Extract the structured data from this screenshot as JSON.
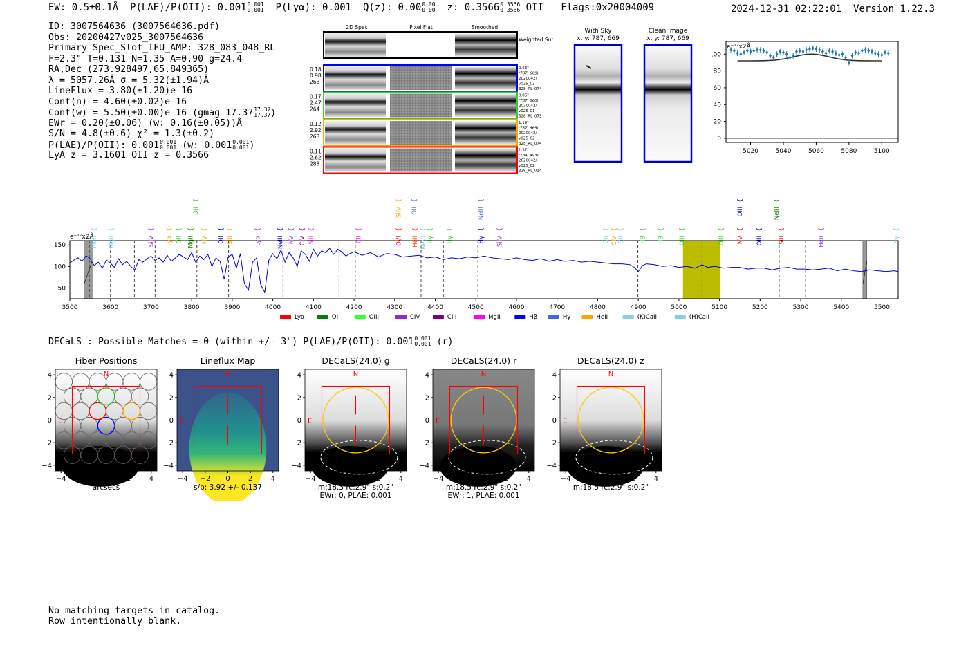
{
  "header": {
    "ew": "EW: 0.5±0.1Å",
    "plae": "P(LAE)/P(OII): 0.001",
    "plae_hi": "0.001",
    "plae_lo": "0.001",
    "plya": "P(Lyα): 0.001",
    "qz": "Q(z): 0.00",
    "qz_hi": "0.00",
    "qz_lo": "0.00",
    "z": "z: 0.3566",
    "z_hi": "0.3566",
    "z_lo": "0.3566",
    "z_line": "OII",
    "flags": "Flags:0x20004009",
    "timestamp": "2024-12-31 02:22:01",
    "version": "Version 1.22.3"
  },
  "info": {
    "id": "ID: 3007564636 (3007564636.pdf)",
    "obs": "Obs: 20200427v025_3007564636",
    "primary": "Primary Spec_Slot_IFU_AMP: 328_083_048_RL",
    "fit": "F=2.3\"  T=0.131  N=1.35  A=0.90  g=24.4",
    "radec": "RA,Dec (273.928497,65.849365)",
    "lambda": "λ = 5057.26Å   σ = 5.32(±1.94)Å",
    "lineflux": "LineFlux = 3.80(±1.20)e-16",
    "contn": "Cont(n) = 4.60(±0.02)e-16",
    "contw": "Cont(w) = 5.50(±0.00)e-16 (gmag 17.37",
    "contw_hi": "17.37",
    "contw_lo": "17.37",
    "contw_end": ")",
    "ewr": "EWr = 0.20(±0.06) (w: 0.16(±0.05))Å",
    "sn": "S/N = 4.8(±0.6)  χ² = 1.3(±0.2)",
    "plae": "P(LAE)/P(OII): 0.001",
    "plae_hi": "0.001",
    "plae_lo": "0.001",
    "plae_w": "(w: 0.001",
    "plae_w_hi": "0.001",
    "plae_w_lo": "0.001",
    "plae_end": ")",
    "lyaz": "LyA z = 3.1601  OII z = 0.3566"
  },
  "cutouts": {
    "col_titles": [
      "2D Spec",
      "Pixel Flat",
      "Smoothed"
    ],
    "weighted_label": "Weighted Sum",
    "rows": [
      {
        "color": "#0000ff",
        "left": [
          "0.18",
          "0.98",
          "263"
        ],
        "right": [
          "0.63\"",
          "(787, 669)",
          "2020042/",
          "v025_03",
          "328_RL_074"
        ]
      },
      {
        "color": "#33cc33",
        "left": [
          "0.17",
          "2.47",
          "264"
        ],
        "right": [
          "0.86\"",
          "(787, 660)",
          "2020042/",
          "v025_01",
          "328_RL_073"
        ]
      },
      {
        "color": "#ffa500",
        "left": [
          "0.12",
          "2.92",
          "263"
        ],
        "right": [
          "1.19\"",
          "(787, 669)",
          "2020042/",
          "v025_02",
          "328_RL_074"
        ]
      },
      {
        "color": "#ff0000",
        "left": [
          "0.11",
          "2.62",
          "283"
        ],
        "right": [
          "1.37\"",
          "(784, 493)",
          "2020042/",
          "v025_02",
          "328_RL_014"
        ]
      }
    ]
  },
  "sky": {
    "with_sky_title": "With Sky",
    "with_sky_coord": "x, y: 787, 669",
    "clean_title": "Clean Image",
    "clean_coord": "x, y: 787, 669"
  },
  "chart_data": [
    {
      "type": "scatter",
      "name": "line-zoom",
      "unit_label": "e⁻¹⁷x2Å",
      "xlim": [
        5005,
        5110
      ],
      "ylim": [
        -5,
        115
      ],
      "xticks": [
        5020,
        5040,
        5060,
        5080,
        5100
      ],
      "yticks": [
        0,
        20,
        40,
        60,
        80,
        100
      ],
      "x": [
        5008,
        5010,
        5012,
        5014,
        5016,
        5018,
        5020,
        5022,
        5024,
        5026,
        5028,
        5030,
        5032,
        5034,
        5036,
        5038,
        5040,
        5042,
        5044,
        5046,
        5048,
        5050,
        5052,
        5054,
        5056,
        5058,
        5060,
        5062,
        5064,
        5066,
        5068,
        5070,
        5072,
        5074,
        5076,
        5078,
        5080,
        5082,
        5084,
        5086,
        5088,
        5090,
        5092,
        5094,
        5096,
        5098,
        5100,
        5102,
        5104
      ],
      "y": [
        105,
        104,
        101,
        100,
        102,
        104,
        103,
        104,
        105,
        105,
        104,
        102,
        98,
        96,
        100,
        103,
        102,
        100,
        96,
        98,
        103,
        104,
        103,
        105,
        106,
        107,
        106,
        105,
        103,
        101,
        104,
        103,
        101,
        99,
        100,
        96,
        90,
        98,
        102,
        101,
        104,
        105,
        104,
        103,
        101,
        100,
        99,
        102,
        101
      ],
      "fit_baseline": 92,
      "fit_peak": 8,
      "fit_center": 5057,
      "fit_sigma": 5.3
    },
    {
      "type": "line",
      "name": "full-spectrum",
      "unit_label": "e⁻¹⁷x2Å",
      "xlim": [
        3500,
        5540
      ],
      "ylim": [
        25,
        160
      ],
      "xticks": [
        3500,
        3600,
        3700,
        3800,
        3900,
        4000,
        4100,
        4200,
        4300,
        4400,
        4500,
        4600,
        4700,
        4800,
        4900,
        5000,
        5100,
        5200,
        5300,
        5400,
        5500
      ],
      "yticks": [
        50,
        100,
        150
      ],
      "x": [
        3500,
        3510,
        3520,
        3530,
        3540,
        3550,
        3560,
        3570,
        3580,
        3590,
        3600,
        3610,
        3620,
        3630,
        3640,
        3650,
        3660,
        3670,
        3680,
        3690,
        3700,
        3710,
        3720,
        3730,
        3740,
        3750,
        3760,
        3770,
        3780,
        3790,
        3800,
        3810,
        3820,
        3830,
        3840,
        3850,
        3860,
        3870,
        3880,
        3890,
        3900,
        3910,
        3920,
        3930,
        3940,
        3950,
        3960,
        3970,
        3980,
        3990,
        4000,
        4010,
        4020,
        4030,
        4040,
        4050,
        4060,
        4070,
        4080,
        4090,
        4100,
        4110,
        4120,
        4130,
        4140,
        4150,
        4160,
        4170,
        4180,
        4190,
        4200,
        4220,
        4240,
        4260,
        4280,
        4300,
        4320,
        4340,
        4360,
        4380,
        4400,
        4420,
        4440,
        4460,
        4480,
        4500,
        4520,
        4540,
        4560,
        4580,
        4600,
        4620,
        4640,
        4660,
        4680,
        4700,
        4720,
        4740,
        4760,
        4780,
        4800,
        4820,
        4840,
        4860,
        4880,
        4890,
        4900,
        4910,
        4920,
        4940,
        4960,
        4980,
        5000,
        5020,
        5040,
        5057,
        5070,
        5090,
        5110,
        5130,
        5150,
        5170,
        5190,
        5210,
        5230,
        5250,
        5270,
        5290,
        5310,
        5330,
        5350,
        5370,
        5390,
        5410,
        5430,
        5450,
        5470,
        5490,
        5510,
        5530,
        5540
      ],
      "y": [
        108,
        115,
        120,
        112,
        125,
        118,
        102,
        110,
        96,
        115,
        108,
        98,
        118,
        104,
        112,
        100,
        92,
        116,
        110,
        118,
        124,
        114,
        120,
        110,
        126,
        112,
        120,
        128,
        122,
        116,
        132,
        110,
        124,
        116,
        128,
        100,
        120,
        112,
        70,
        122,
        128,
        96,
        130,
        60,
        45,
        110,
        120,
        58,
        40,
        115,
        130,
        118,
        138,
        110,
        132,
        120,
        100,
        136,
        128,
        112,
        140,
        124,
        136,
        132,
        142,
        128,
        140,
        134,
        124,
        130,
        134,
        126,
        132,
        122,
        130,
        128,
        122,
        124,
        126,
        120,
        122,
        116,
        120,
        118,
        122,
        120,
        124,
        120,
        118,
        116,
        120,
        116,
        114,
        118,
        112,
        116,
        112,
        114,
        110,
        112,
        110,
        108,
        106,
        106,
        104,
        98,
        88,
        102,
        106,
        104,
        100,
        102,
        98,
        100,
        96,
        104,
        98,
        100,
        96,
        98,
        98,
        94,
        96,
        96,
        92,
        96,
        98,
        94,
        94,
        92,
        94,
        96,
        90,
        94,
        90,
        88,
        92,
        90,
        88,
        90,
        88
      ]
    }
  ],
  "spectrum": {
    "highlight_range": [
      5010,
      5102
    ],
    "gray_bars": [
      3535,
      3555,
      5453,
      5463
    ],
    "dashed_lines": [
      3548,
      3600,
      3659,
      3710,
      3813,
      3891,
      4025,
      4163,
      4203,
      4365,
      4420,
      4505,
      4899,
      5057,
      5247,
      5312
    ],
    "line_labels": [
      {
        "x": 3560,
        "text": "MgII",
        "color": "#87ceeb",
        "row": 2
      },
      {
        "x": 3602,
        "text": "MgII",
        "color": "#87ceeb",
        "row": 2
      },
      {
        "x": 3700,
        "text": "SiIV",
        "color": "#8a2be2",
        "row": 2
      },
      {
        "x": 3744,
        "text": "Lyα",
        "color": "#ffa500",
        "row": 2
      },
      {
        "x": 3768,
        "text": "OII",
        "color": "#33cc33",
        "row": 2
      },
      {
        "x": 3797,
        "text": "MgII",
        "color": "#008000",
        "row": 2
      },
      {
        "x": 3810,
        "text": "OII",
        "color": "#33cc33",
        "row": 0
      },
      {
        "x": 3831,
        "text": "NV",
        "color": "#ffa500",
        "row": 2
      },
      {
        "x": 3872,
        "text": "OII",
        "color": "#0000cc",
        "row": 2
      },
      {
        "x": 3893,
        "text": "SiII",
        "color": "#ffa500",
        "row": 2
      },
      {
        "x": 3962,
        "text": "Lyα",
        "color": "#8a2be2",
        "row": 2
      },
      {
        "x": 4018,
        "text": "NeIII",
        "color": "#0000cc",
        "row": 2
      },
      {
        "x": 4045,
        "text": "NV",
        "color": "#8a2be2",
        "row": 2
      },
      {
        "x": 4072,
        "text": "CIV",
        "color": "#800080",
        "row": 2
      },
      {
        "x": 4094,
        "text": "SiII",
        "color": "#dd44dd",
        "row": 2
      },
      {
        "x": 4211,
        "text": "CII",
        "color": "#ff00ff",
        "row": 2
      },
      {
        "x": 4310,
        "text": "SiIV",
        "color": "#ffa500",
        "row": 0
      },
      {
        "x": 4310,
        "text": "OVI",
        "color": "#ff0000",
        "row": 2
      },
      {
        "x": 4348,
        "text": "OII",
        "color": "#4169e1",
        "row": 0
      },
      {
        "x": 4350,
        "text": "HeII",
        "color": "#ff4500",
        "row": 2
      },
      {
        "x": 4370,
        "text": "NeVI",
        "color": "#87ceeb",
        "row": 2
      },
      {
        "x": 4386,
        "text": "Hγ",
        "color": "#33cc33",
        "row": 2
      },
      {
        "x": 4435,
        "text": "Hγ",
        "color": "#33cc33",
        "row": 2
      },
      {
        "x": 4512,
        "text": "NeIII",
        "color": "#4169e1",
        "row": 0
      },
      {
        "x": 4512,
        "text": "Hγ",
        "color": "#0000cc",
        "row": 2
      },
      {
        "x": 4558,
        "text": "SiIV",
        "color": "#8a2be2",
        "row": 2
      },
      {
        "x": 4820,
        "text": "OII",
        "color": "#87ceeb",
        "row": 2
      },
      {
        "x": 4840,
        "text": "CIV",
        "color": "#ffa500",
        "row": 2
      },
      {
        "x": 4856,
        "text": "OII",
        "color": "#87ceeb",
        "row": 2
      },
      {
        "x": 4911,
        "text": "Hβ",
        "color": "#33cc33",
        "row": 2
      },
      {
        "x": 4955,
        "text": "Hβ",
        "color": "#33cc33",
        "row": 2
      },
      {
        "x": 5007,
        "text": "OIII",
        "color": "#33cc33",
        "row": 2
      },
      {
        "x": 5104,
        "text": "OIII",
        "color": "#33cc33",
        "row": 2
      },
      {
        "x": 5150,
        "text": "OIII",
        "color": "#0000cc",
        "row": 0
      },
      {
        "x": 5150,
        "text": "NV",
        "color": "#ff0000",
        "row": 2
      },
      {
        "x": 5198,
        "text": "OIII",
        "color": "#0000cc",
        "row": 2
      },
      {
        "x": 5240,
        "text": "NeIII",
        "color": "#008000",
        "row": 0
      },
      {
        "x": 5252,
        "text": "SiII",
        "color": "#ff0000",
        "row": 2
      },
      {
        "x": 5350,
        "text": "HeII",
        "color": "#8a2be2",
        "row": 2
      },
      {
        "x": 5535,
        "text": "Hγ",
        "color": "#87ceeb",
        "row": 2
      }
    ],
    "legend": [
      {
        "label": "Lyα",
        "color": "#ff0000"
      },
      {
        "label": "OII",
        "color": "#008000"
      },
      {
        "label": "OIII",
        "color": "#33ff33"
      },
      {
        "label": "CIV",
        "color": "#8a2be2"
      },
      {
        "label": "CIII",
        "color": "#800080"
      },
      {
        "label": "MgII",
        "color": "#ff00ff"
      },
      {
        "label": "Hβ",
        "color": "#0000ff"
      },
      {
        "label": "Hγ",
        "color": "#4169e1"
      },
      {
        "label": "HeII",
        "color": "#ffa500"
      },
      {
        "label": "(K)CaII",
        "color": "#87ceeb"
      },
      {
        "label": "(H)CaII",
        "color": "#87ceeb"
      }
    ]
  },
  "decals": {
    "line": "DECaLS : Possible Matches = 0 (within +/- 3\")  P(LAE)/P(OII): 0.001",
    "plae_hi": "0.001",
    "plae_lo": "0.001",
    "band": "(r)"
  },
  "panels": [
    {
      "title": "Fiber Positions",
      "sub1": "arcsecs",
      "sub2": "",
      "kind": "fibers"
    },
    {
      "title": "Lineflux Map",
      "sub1": "s/b: 3.92 +/- 0.137",
      "sub2": "",
      "kind": "lineflux"
    },
    {
      "title": "DECaLS(24.0) g",
      "sub1": "m:18.3 rc:2.9\"  s:0.2\"",
      "sub2": "EWr: 0, PLAE: 0.001",
      "kind": "g"
    },
    {
      "title": "DECaLS(24.0) r",
      "sub1": "m:18.5 rc:2.9\"  s:0.2\"",
      "sub2": "EWr: 1, PLAE: 0.001",
      "kind": "r"
    },
    {
      "title": "DECaLS(24.0) z",
      "sub1": "m:18.5 rc:2.9\"  s:0.2\"",
      "sub2": "",
      "kind": "z"
    }
  ],
  "panel_axes": {
    "ticks": [
      "4",
      "2",
      "0",
      "−2",
      "−4"
    ],
    "xticks": [
      "−4",
      "−2",
      "0",
      "2",
      "4"
    ],
    "north": "N",
    "east": "E"
  },
  "footer": {
    "line1": "No matching targets in catalog.",
    "line2": "Row intentionally blank."
  }
}
